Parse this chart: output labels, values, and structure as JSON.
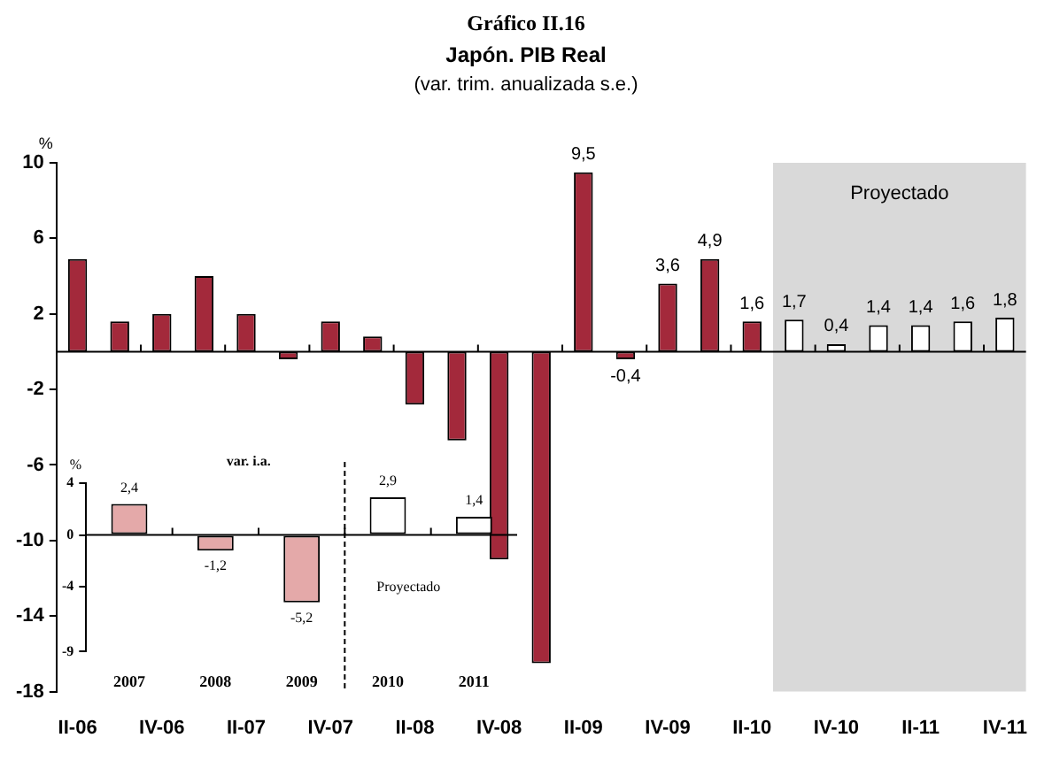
{
  "chart_data": [
    {
      "type": "bar",
      "title": "Japón. PIB Real",
      "subtitle": "(var. trim. anualizada s.e.)",
      "ylabel": "%",
      "annotations": [
        "Gráfico II.16"
      ],
      "categories": [
        "II-06",
        null,
        "IV-06",
        null,
        "II-07",
        null,
        "IV-07",
        null,
        "II-08",
        null,
        "IV-08",
        null,
        "II-09",
        null,
        "IV-09",
        null,
        "II-10",
        null,
        "IV-10",
        null,
        "II-11",
        null,
        "IV-11"
      ],
      "values": [
        4.9,
        1.6,
        2.0,
        4.0,
        2.0,
        -0.4,
        1.6,
        0.8,
        -2.8,
        -4.7,
        -11,
        -16.5,
        9.5,
        -0.4,
        3.6,
        4.9,
        1.6,
        1.7,
        0.4,
        1.4,
        1.4,
        1.6,
        1.8
      ],
      "colors": [
        "#a3293b",
        "#a3293b",
        "#a3293b",
        "#a3293b",
        "#a3293b",
        "#a3293b",
        "#a3293b",
        "#a3293b",
        "#a3293b",
        "#a3293b",
        "#a3293b",
        "#a3293b",
        "#a3293b",
        "#a3293b",
        "#a3293b",
        "#a3293b",
        "#a3293b",
        "#ffffff",
        "#ffffff",
        "#ffffff",
        "#ffffff",
        "#ffffff",
        "#ffffff"
      ],
      "value_labels": [
        null,
        null,
        null,
        null,
        null,
        null,
        null,
        null,
        null,
        null,
        null,
        null,
        "9,5",
        "-0,4",
        "3,6",
        "4,9",
        "1,6",
        "1,7",
        "0,4",
        "1,4",
        "1,4",
        "1,6",
        "1,8"
      ],
      "ylim": [
        -18,
        10
      ],
      "yticks": [
        10,
        6,
        2,
        -2,
        -6,
        -10,
        -14,
        -18
      ],
      "bands": [
        {
          "axis": "x",
          "from": "II-10",
          "to": "IV-11",
          "label": "Proyectado",
          "color": "#d9d9d9"
        }
      ],
      "grid": false,
      "legend": false
    },
    {
      "type": "bar",
      "title": "var. i.a.",
      "ylabel": "%",
      "categories": [
        "2007",
        "2008",
        "2009",
        "2010",
        "2011"
      ],
      "values": [
        2.4,
        -1.2,
        -5.2,
        2.9,
        1.4
      ],
      "colors": [
        "#e4a9a9",
        "#e4a9a9",
        "#e4a9a9",
        "#ffffff",
        "#ffffff"
      ],
      "value_labels": [
        "2,4",
        "-1,2",
        "-5,2",
        "2,9",
        "1,4"
      ],
      "ylim": [
        -9,
        4
      ],
      "yticks": [
        4,
        0,
        -4,
        -9
      ],
      "ref_lines": [
        {
          "axis": "x",
          "value": "2010",
          "label": "Proyectado",
          "line_style": "dashed",
          "color": "#000000"
        }
      ],
      "grid": false,
      "legend": false
    }
  ]
}
